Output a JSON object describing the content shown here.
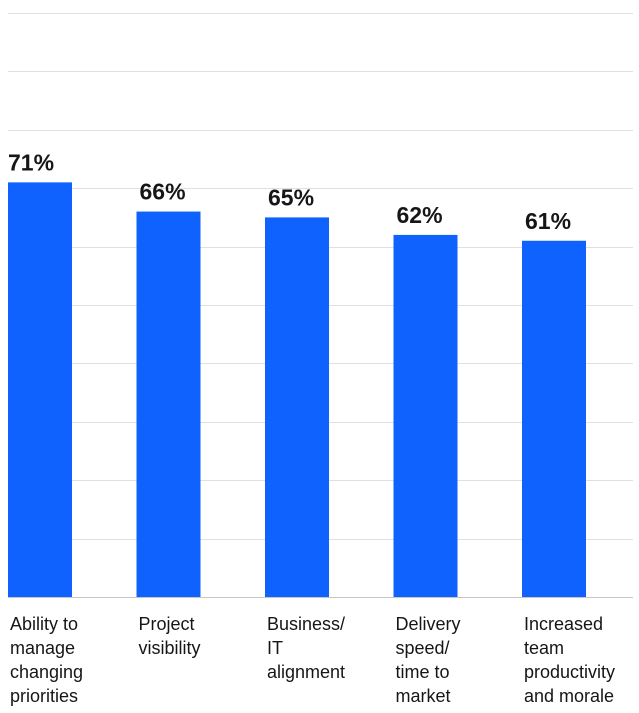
{
  "chart_data": {
    "type": "bar",
    "title": "",
    "xlabel": "",
    "ylabel": "",
    "categories": [
      "Ability to manage changing priorities",
      "Project visibility",
      "Business/ IT alignment",
      "Delivery speed/ time to market",
      "Increased team productivity and morale"
    ],
    "category_lines": [
      [
        "Ability to",
        "manage",
        "changing",
        "priorities"
      ],
      [
        "Project",
        "visibility"
      ],
      [
        "Business/",
        "IT",
        "alignment"
      ],
      [
        "Delivery",
        "speed/",
        "time to",
        "market"
      ],
      [
        "Increased",
        "team",
        "productivity",
        "and morale"
      ]
    ],
    "values": [
      71,
      66,
      65,
      62,
      61
    ],
    "value_labels": [
      "71%",
      "66%",
      "65%",
      "62%",
      "61%"
    ],
    "ylim": [
      0,
      100
    ],
    "grid": true,
    "legend": "none",
    "bar_color": "#0f62fe"
  }
}
